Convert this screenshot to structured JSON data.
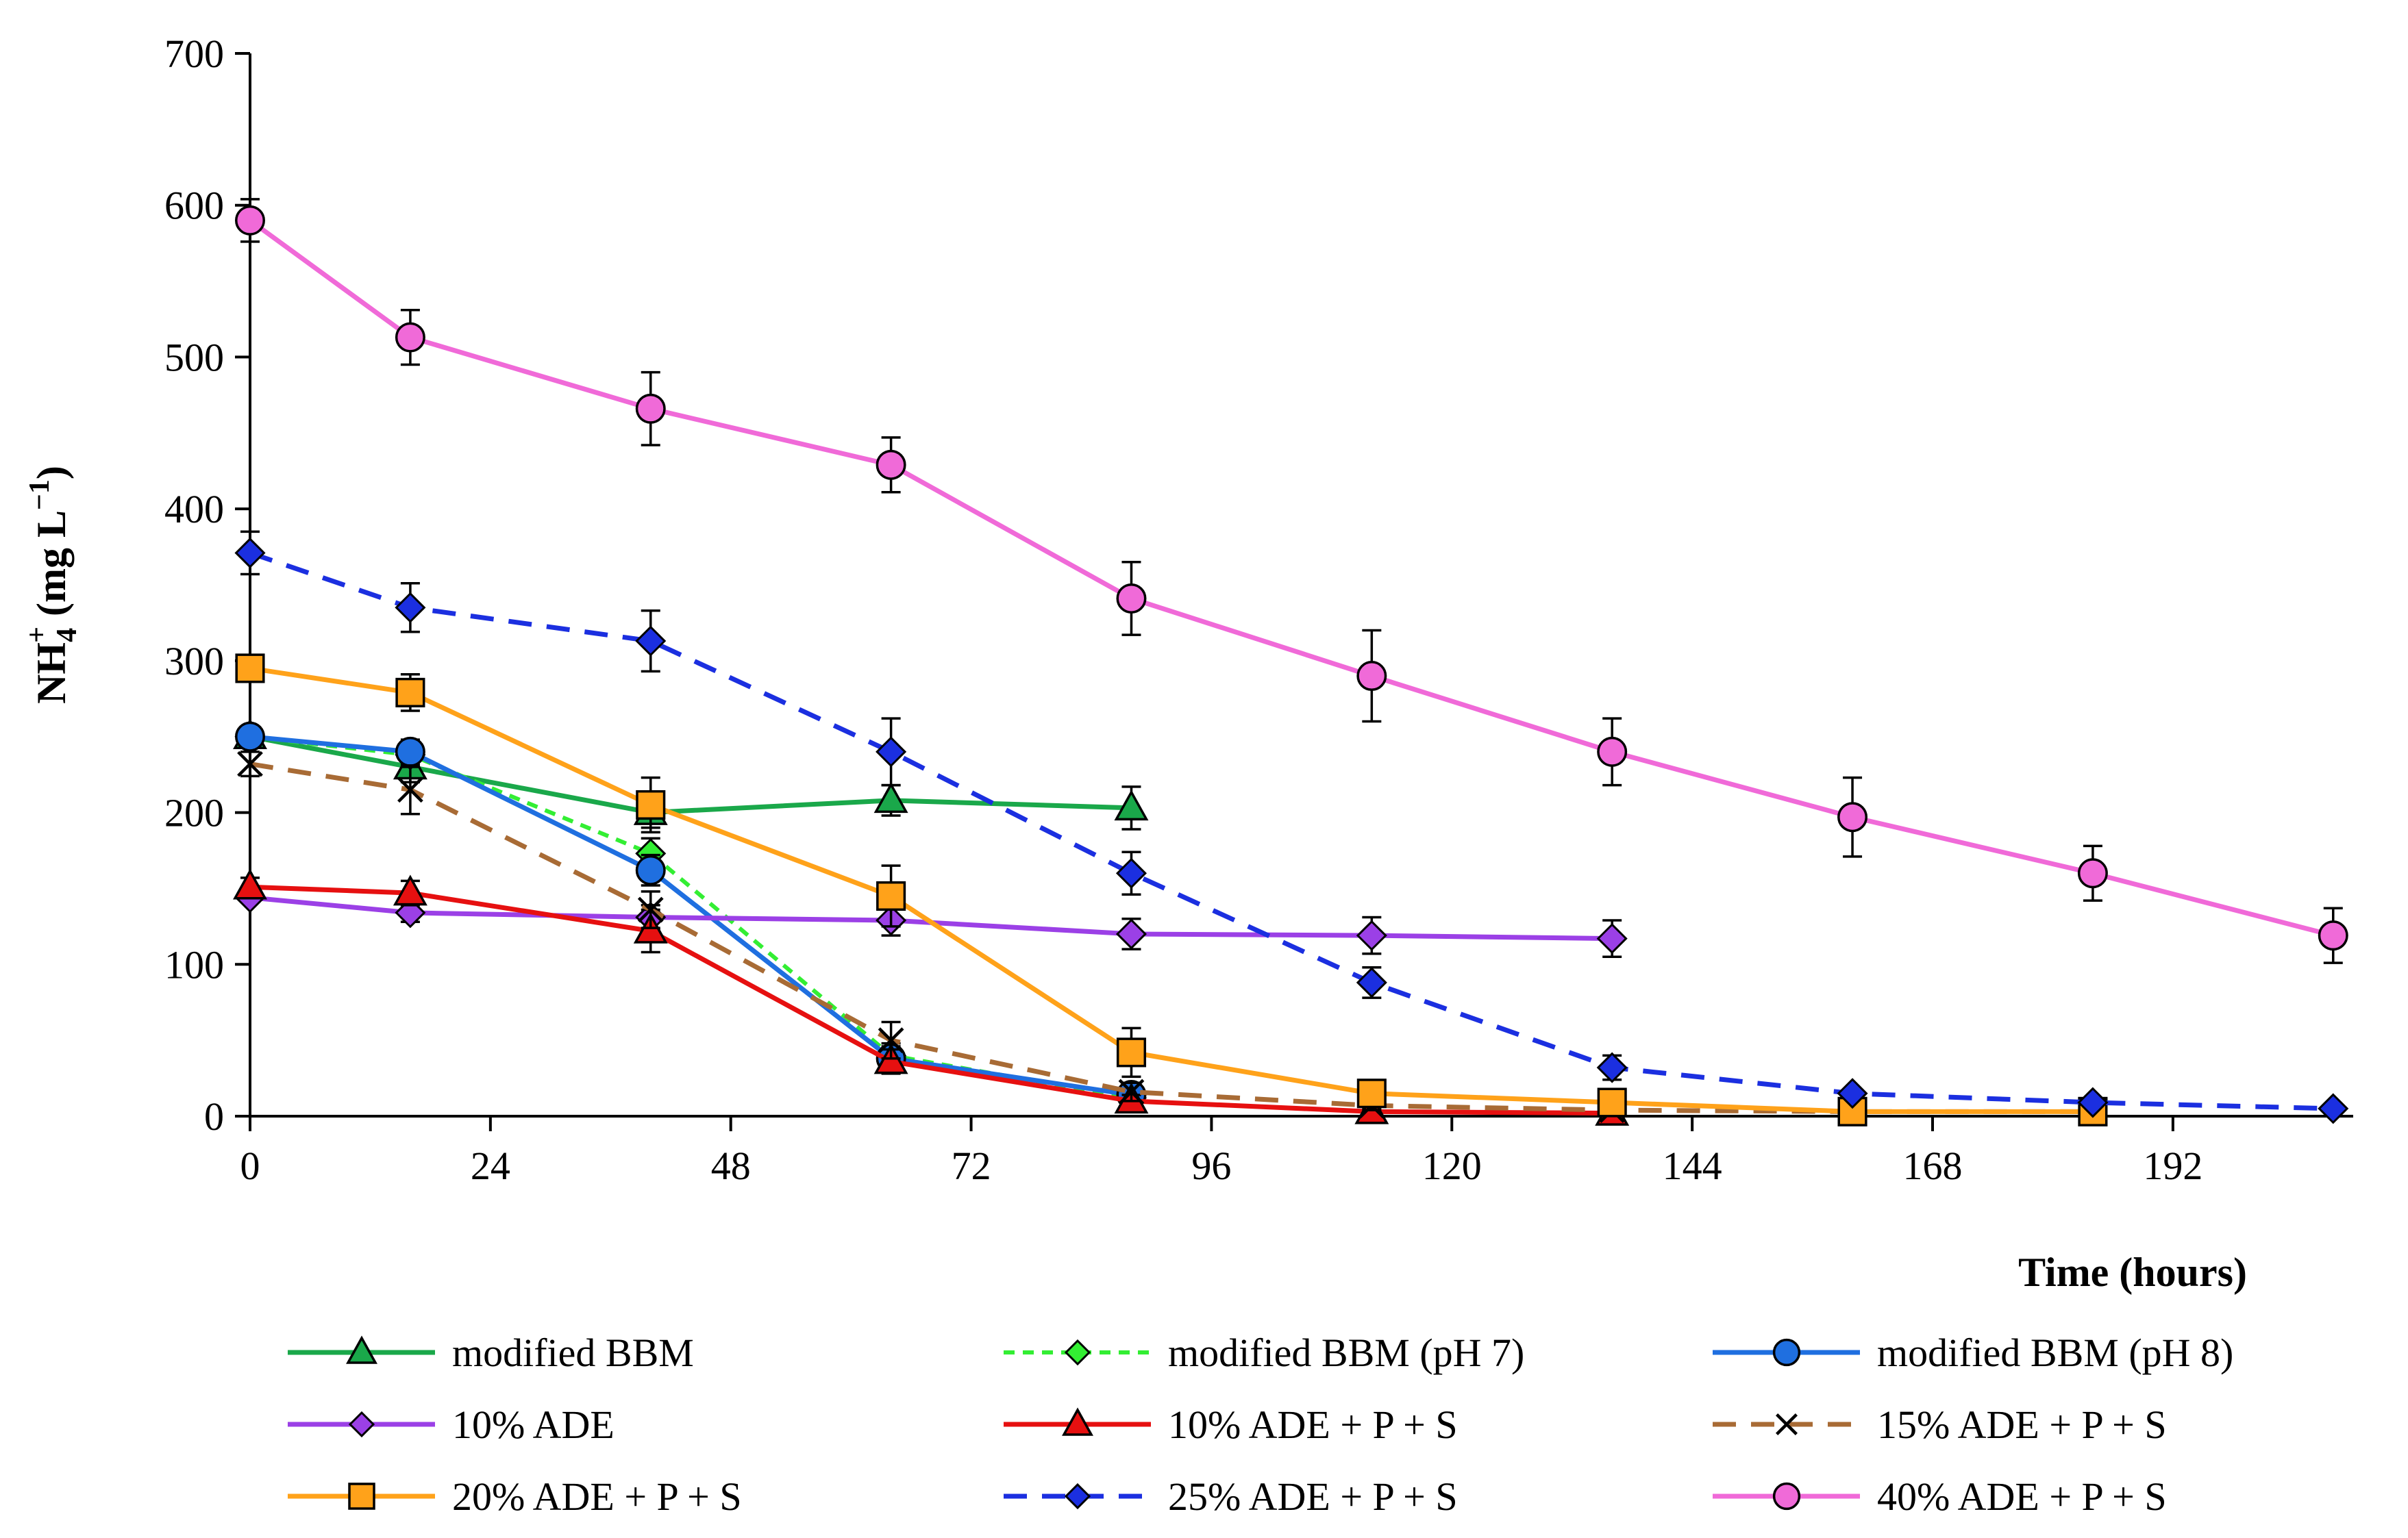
{
  "chart_data": {
    "type": "line",
    "title": "",
    "xlabel": "Time (hours)",
    "ylabel": "NH4+ (mg L−1)",
    "ylabel_parts": {
      "main": "NH",
      "sub": "4",
      "sup": "+",
      "rest": " (mg L",
      "rest_sup": "−1",
      "close": ")"
    },
    "xlim": [
      0,
      210
    ],
    "ylim": [
      0,
      700
    ],
    "xticks": [
      0,
      24,
      48,
      72,
      96,
      120,
      144,
      168,
      192
    ],
    "yticks": [
      0,
      100,
      200,
      300,
      400,
      500,
      600,
      700
    ],
    "series": [
      {
        "name": "modified BBM",
        "color": "#1aa84a",
        "dash": "solid",
        "marker": "triangle",
        "x": [
          0,
          16,
          40,
          64,
          88
        ],
        "y": [
          250,
          230,
          200,
          208,
          203
        ],
        "err": [
          0,
          10,
          10,
          10,
          14
        ]
      },
      {
        "name": "modified BBM (pH 7)",
        "color": "#33ee33",
        "dash": "dotted",
        "marker": "diamond",
        "x": [
          0,
          16,
          40,
          64,
          88
        ],
        "y": [
          250,
          238,
          173,
          40,
          12
        ],
        "err": [
          0,
          8,
          10,
          8,
          5
        ]
      },
      {
        "name": "modified BBM (pH 8)",
        "color": "#1f6fe0",
        "dash": "solid",
        "marker": "circle",
        "x": [
          0,
          16,
          40,
          64,
          88
        ],
        "y": [
          250,
          240,
          162,
          38,
          14
        ],
        "err": [
          0,
          8,
          10,
          8,
          5
        ]
      },
      {
        "name": "10% ADE",
        "color": "#9b40e6",
        "dash": "solid",
        "marker": "diamond",
        "x": [
          0,
          16,
          40,
          64,
          88,
          112,
          136
        ],
        "y": [
          144,
          134,
          131,
          129,
          120,
          119,
          117
        ],
        "err": [
          0,
          6,
          8,
          10,
          10,
          12,
          12
        ]
      },
      {
        "name": "10% ADE + P + S",
        "color": "#e61010",
        "dash": "solid",
        "marker": "triangle",
        "x": [
          0,
          16,
          40,
          64,
          88,
          112,
          136
        ],
        "y": [
          151,
          147,
          122,
          36,
          10,
          3,
          2
        ],
        "err": [
          6,
          8,
          14,
          8,
          4,
          2,
          1
        ]
      },
      {
        "name": "15% ADE + P + S",
        "color": "#a86b35",
        "dash": "dashed",
        "marker": "cross",
        "x": [
          0,
          16,
          40,
          64,
          88,
          112,
          136,
          160,
          184
        ],
        "y": [
          232,
          215,
          136,
          50,
          16,
          7,
          4,
          3,
          3
        ],
        "err": [
          8,
          16,
          12,
          12,
          6,
          3,
          2,
          2,
          2
        ]
      },
      {
        "name": "20% ADE + P + S",
        "color": "#ffa21a",
        "dash": "solid",
        "marker": "square",
        "x": [
          0,
          16,
          40,
          64,
          88,
          112,
          136,
          160,
          184
        ],
        "y": [
          295,
          279,
          205,
          145,
          42,
          15,
          9,
          3,
          3
        ],
        "err": [
          6,
          12,
          18,
          20,
          16,
          6,
          4,
          2,
          2
        ]
      },
      {
        "name": "25% ADE + P + S",
        "color": "#1b2fe0",
        "dash": "dashed",
        "marker": "diamond",
        "x": [
          0,
          16,
          40,
          64,
          88,
          112,
          136,
          160,
          184,
          208
        ],
        "y": [
          371,
          335,
          313,
          240,
          160,
          88,
          32,
          15,
          9,
          5
        ],
        "err": [
          14,
          16,
          20,
          22,
          14,
          10,
          8,
          3,
          2,
          2
        ]
      },
      {
        "name": "40% ADE + P + S",
        "color": "#f06ad8",
        "dash": "solid",
        "marker": "circle",
        "x": [
          0,
          16,
          40,
          64,
          88,
          112,
          136,
          160,
          184,
          208
        ],
        "y": [
          590,
          513,
          466,
          429,
          341,
          290,
          240,
          197,
          160,
          119
        ],
        "err": [
          14,
          18,
          24,
          18,
          24,
          30,
          22,
          26,
          18,
          18
        ]
      }
    ],
    "legend_position": "bottom",
    "grid": false
  }
}
